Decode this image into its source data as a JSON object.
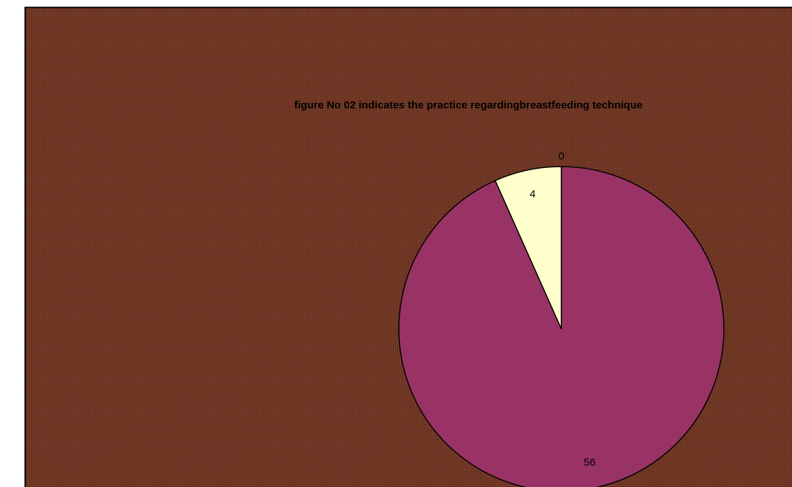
{
  "chart_data": {
    "type": "pie",
    "title": "figure No 02 indicates  the practice regardingbreastfeeding technique",
    "slices": [
      {
        "label": "56",
        "value": 56,
        "color": "#993366"
      },
      {
        "label": "4",
        "value": 4,
        "color": "#ffffcc"
      },
      {
        "label": "0",
        "value": 0,
        "color": "#9999ff"
      }
    ],
    "start_angle_deg": 0,
    "direction": "clockwise",
    "legend": "none",
    "background_color": "#6b3220",
    "slice_outline_color": "#000000"
  }
}
